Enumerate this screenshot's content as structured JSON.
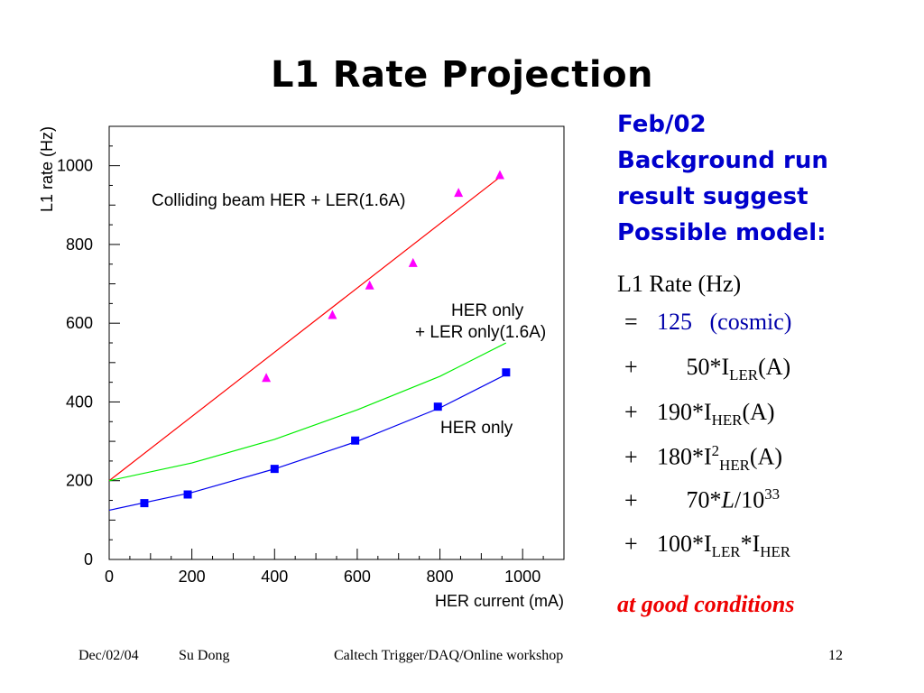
{
  "slide": {
    "title": "L1 Rate Projection",
    "note_lines": [
      "Feb/02",
      "Background run",
      "result suggest",
      "Possible model:"
    ],
    "formula": {
      "heading": "L1 Rate (Hz)",
      "rows": [
        {
          "op": "=",
          "term": "125",
          "tail": "(cosmic)"
        },
        {
          "op": "+",
          "term": "50*I",
          "sub": "LER",
          "tail": "(A)"
        },
        {
          "op": "+",
          "term": "190*I",
          "sub": "HER",
          "tail": "(A)"
        },
        {
          "op": "+",
          "term": "180*I",
          "sup": "2",
          "sub": "HER",
          "tail": "(A)"
        },
        {
          "op": "+",
          "term": "70*",
          "lumi": "L",
          "tail": "/10",
          "tailsup": "33"
        },
        {
          "op": "+",
          "term": "100*I",
          "sub": "LER",
          "tail": "*I",
          "tailsub": "HER"
        }
      ]
    },
    "condition": "at good conditions",
    "footer": {
      "date": "Dec/02/04",
      "author": "Su Dong",
      "event": "Caltech Trigger/DAQ/Online workshop",
      "page": "12"
    }
  },
  "chart_data": {
    "type": "line",
    "xlabel": "HER current (mA)",
    "ylabel": "L1 rate (Hz)",
    "xlim": [
      0,
      1100
    ],
    "ylim": [
      0,
      1100
    ],
    "xticks": [
      0,
      200,
      400,
      600,
      800,
      1000
    ],
    "yticks": [
      0,
      200,
      400,
      600,
      800,
      1000
    ],
    "grid": false,
    "series": [
      {
        "name": "Colliding beam HER + LER(1.6A)",
        "color": "#ff0000",
        "marker": "triangle",
        "marker_color": "#ff00ff",
        "line": [
          [
            0,
            200
          ],
          [
            950,
            975
          ]
        ],
        "points": [
          [
            380,
            460
          ],
          [
            540,
            620
          ],
          [
            630,
            695
          ],
          [
            735,
            752
          ],
          [
            845,
            930
          ],
          [
            945,
            975
          ]
        ]
      },
      {
        "name": "HER only\n+ LER only(1.6A)",
        "color": "#00ee00",
        "line": [
          [
            0,
            200
          ],
          [
            200,
            245
          ],
          [
            400,
            305
          ],
          [
            600,
            380
          ],
          [
            800,
            465
          ],
          [
            960,
            550
          ]
        ],
        "points": []
      },
      {
        "name": "HER only",
        "color": "#0000ee",
        "marker": "square",
        "marker_color": "#0000ff",
        "line": [
          [
            0,
            125
          ],
          [
            200,
            170
          ],
          [
            400,
            230
          ],
          [
            600,
            300
          ],
          [
            800,
            385
          ],
          [
            960,
            470
          ]
        ],
        "points": [
          [
            85,
            143
          ],
          [
            190,
            165
          ],
          [
            400,
            230
          ],
          [
            595,
            302
          ],
          [
            795,
            388
          ],
          [
            960,
            475
          ]
        ]
      }
    ]
  }
}
